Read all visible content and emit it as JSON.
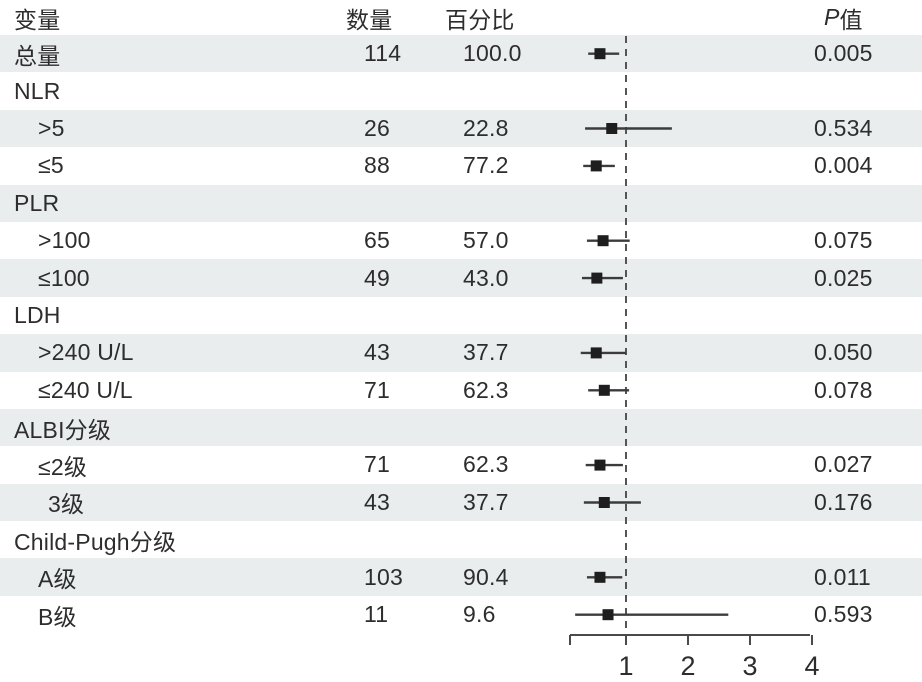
{
  "colors": {
    "row_shade": "#e9edee",
    "text": "#2d2d2d",
    "axis_line": "#4a4a4a",
    "ci_line": "#3c3c3c",
    "marker": "#1e1e1e",
    "reference_line": "#555555"
  },
  "header": {
    "variable": "变量",
    "count": "数量",
    "percent": "百分比",
    "p_prefix": "P",
    "p_suffix": "值"
  },
  "rows": [
    {
      "label": "总量",
      "indent": 0,
      "count": "114",
      "percent": "100.0",
      "p": "0.005",
      "shaded": true
    },
    {
      "label": "NLR",
      "indent": 0,
      "shaded": false
    },
    {
      "label": ">5",
      "indent": 1,
      "count": "26",
      "percent": "22.8",
      "p": "0.534",
      "shaded": true
    },
    {
      "label": "≤5",
      "indent": 1,
      "count": "88",
      "percent": "77.2",
      "p": "0.004",
      "shaded": false
    },
    {
      "label": "PLR",
      "indent": 0,
      "shaded": true
    },
    {
      "label": ">100",
      "indent": 1,
      "count": "65",
      "percent": "57.0",
      "p": "0.075",
      "shaded": false
    },
    {
      "label": "≤100",
      "indent": 1,
      "count": "49",
      "percent": "43.0",
      "p": "0.025",
      "shaded": true
    },
    {
      "label": "LDH",
      "indent": 0,
      "shaded": false
    },
    {
      "label": ">240 U/L",
      "indent": 1,
      "count": "43",
      "percent": "37.7",
      "p": "0.050",
      "shaded": true
    },
    {
      "label": "≤240 U/L",
      "indent": 1,
      "count": "71",
      "percent": "62.3",
      "p": "0.078",
      "shaded": false
    },
    {
      "label": "ALBI分级",
      "indent": 0,
      "shaded": true
    },
    {
      "label": "≤2级",
      "indent": 1,
      "count": "71",
      "percent": "62.3",
      "p": "0.027",
      "shaded": false
    },
    {
      "label": "3级",
      "indent": 2,
      "count": "43",
      "percent": "37.7",
      "p": "0.176",
      "shaded": true
    },
    {
      "label": "Child-Pugh分级",
      "indent": 0,
      "shaded": false
    },
    {
      "label": "A级",
      "indent": 1,
      "count": "103",
      "percent": "90.4",
      "p": "0.011",
      "shaded": true
    },
    {
      "label": "B级",
      "indent": 1,
      "count": "11",
      "percent": "9.6",
      "p": "0.593",
      "shaded": false
    }
  ],
  "chart_data": {
    "type": "forest",
    "title": "",
    "columns": [
      "变量",
      "数量",
      "百分比",
      "P值"
    ],
    "x_axis": {
      "ticks": [
        1,
        2,
        3,
        4
      ],
      "tick_labels": [
        "1",
        "2",
        "3",
        "4"
      ],
      "range": [
        0.11,
        4.0
      ],
      "scale": "linear",
      "reference_line": 1
    },
    "legend": "none",
    "grid": "off",
    "points": [
      {
        "row": 0,
        "label": "总量",
        "n": 114,
        "percent": 100.0,
        "estimate": 0.58,
        "ci_low": 0.39,
        "ci_high": 0.89,
        "p": 0.005
      },
      {
        "row": 2,
        "label": "NLR >5",
        "n": 26,
        "percent": 22.8,
        "estimate": 0.77,
        "ci_low": 0.34,
        "ci_high": 1.74,
        "p": 0.534
      },
      {
        "row": 3,
        "label": "NLR ≤5",
        "n": 88,
        "percent": 77.2,
        "estimate": 0.52,
        "ci_low": 0.31,
        "ci_high": 0.82,
        "p": 0.004
      },
      {
        "row": 5,
        "label": "PLR >100",
        "n": 65,
        "percent": 57.0,
        "estimate": 0.63,
        "ci_low": 0.37,
        "ci_high": 1.06,
        "p": 0.075
      },
      {
        "row": 6,
        "label": "PLR ≤100",
        "n": 49,
        "percent": 43.0,
        "estimate": 0.53,
        "ci_low": 0.29,
        "ci_high": 0.95,
        "p": 0.025
      },
      {
        "row": 8,
        "label": "LDH >240 U/L",
        "n": 43,
        "percent": 37.7,
        "estimate": 0.52,
        "ci_low": 0.27,
        "ci_high": 1.0,
        "p": 0.05
      },
      {
        "row": 9,
        "label": "LDH ≤240 U/L",
        "n": 71,
        "percent": 62.3,
        "estimate": 0.65,
        "ci_low": 0.39,
        "ci_high": 1.05,
        "p": 0.078
      },
      {
        "row": 11,
        "label": "ALBI ≤2级",
        "n": 71,
        "percent": 62.3,
        "estimate": 0.58,
        "ci_low": 0.35,
        "ci_high": 0.95,
        "p": 0.027
      },
      {
        "row": 12,
        "label": "ALBI 3级",
        "n": 43,
        "percent": 37.7,
        "estimate": 0.65,
        "ci_low": 0.32,
        "ci_high": 1.24,
        "p": 0.176
      },
      {
        "row": 14,
        "label": "Child-Pugh A级",
        "n": 103,
        "percent": 90.4,
        "estimate": 0.58,
        "ci_low": 0.37,
        "ci_high": 0.94,
        "p": 0.011
      },
      {
        "row": 15,
        "label": "Child-Pugh B级",
        "n": 11,
        "percent": 9.6,
        "estimate": 0.71,
        "ci_low": 0.18,
        "ci_high": 2.65,
        "p": 0.593
      }
    ]
  }
}
